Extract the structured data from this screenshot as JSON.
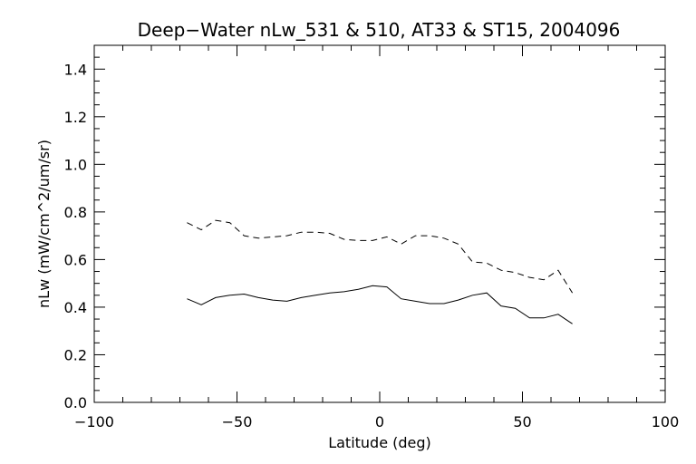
{
  "chart_data": {
    "type": "line",
    "title": "Deep−Water nLw_531 & 510, AT33 & ST15, 2004096",
    "xlabel": "Latitude (deg)",
    "ylabel": "nLw (mW/cm^2/um/sr)",
    "xlim": [
      -100,
      100
    ],
    "ylim": [
      0.0,
      1.5
    ],
    "x_ticks": [
      -100,
      -50,
      0,
      50,
      100
    ],
    "x_tick_labels": [
      "−100",
      "−50",
      "0",
      "50",
      "100"
    ],
    "y_ticks": [
      0.0,
      0.2,
      0.4,
      0.6,
      0.8,
      1.0,
      1.2,
      1.4
    ],
    "y_tick_labels": [
      "0.0",
      "0.2",
      "0.4",
      "0.6",
      "0.8",
      "1.0",
      "1.2",
      "1.4"
    ],
    "grid": false,
    "legend": "none",
    "series": [
      {
        "style": "dashed",
        "color": "#000000",
        "x": [
          -67.5,
          -62.5,
          -57.5,
          -52.5,
          -47.5,
          -42.5,
          -37.5,
          -32.5,
          -27.5,
          -22.5,
          -17.5,
          -12.5,
          -7.5,
          -2.5,
          2.5,
          7.5,
          12.5,
          17.5,
          22.5,
          27.5,
          32.5,
          37.5,
          42.5,
          47.5,
          52.5,
          57.5,
          62.5,
          67.5
        ],
        "y": [
          0.755,
          0.725,
          0.765,
          0.755,
          0.7,
          0.69,
          0.695,
          0.7,
          0.715,
          0.715,
          0.71,
          0.685,
          0.68,
          0.68,
          0.695,
          0.665,
          0.7,
          0.7,
          0.69,
          0.665,
          0.59,
          0.585,
          0.555,
          0.545,
          0.525,
          0.515,
          0.555,
          0.46
        ]
      },
      {
        "style": "solid",
        "color": "#000000",
        "x": [
          -67.5,
          -62.5,
          -57.5,
          -52.5,
          -47.5,
          -42.5,
          -37.5,
          -32.5,
          -27.5,
          -22.5,
          -17.5,
          -12.5,
          -7.5,
          -2.5,
          2.5,
          7.5,
          12.5,
          17.5,
          22.5,
          27.5,
          32.5,
          37.5,
          42.5,
          47.5,
          52.5,
          57.5,
          62.5,
          67.5
        ],
        "y": [
          0.435,
          0.41,
          0.44,
          0.45,
          0.455,
          0.44,
          0.43,
          0.425,
          0.44,
          0.45,
          0.46,
          0.465,
          0.475,
          0.49,
          0.485,
          0.435,
          0.425,
          0.415,
          0.415,
          0.43,
          0.45,
          0.46,
          0.405,
          0.395,
          0.355,
          0.355,
          0.37,
          0.33
        ]
      }
    ]
  }
}
